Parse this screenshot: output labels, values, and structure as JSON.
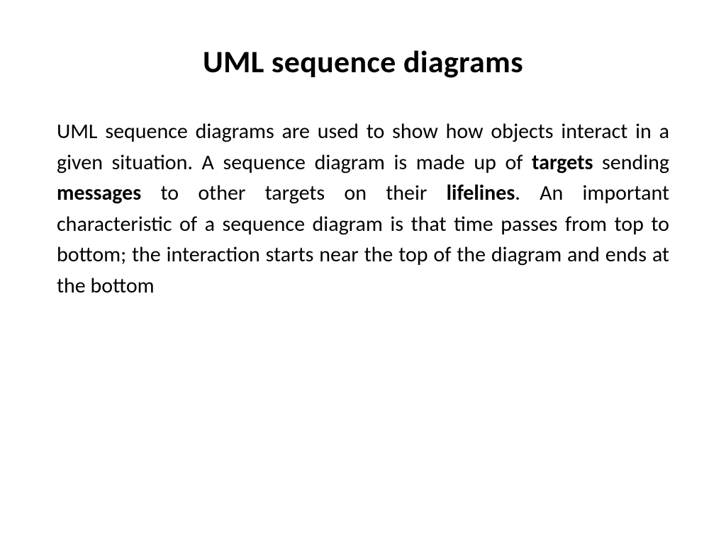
{
  "slide": {
    "title": "UML sequence diagrams",
    "body": {
      "segments": [
        {
          "text": "UML sequence diagrams are used to show how objects interact in a given situation. A sequence diagram is made up of ",
          "bold": false
        },
        {
          "text": "targets",
          "bold": true
        },
        {
          "text": " sending ",
          "bold": false
        },
        {
          "text": "messages",
          "bold": true
        },
        {
          "text": " to other targets on their ",
          "bold": false
        },
        {
          "text": "lifelines",
          "bold": true
        },
        {
          "text": ". An important characteristic of a sequence diagram is that time passes from top to bottom; the interaction starts near the top of the diagram and ends at the bottom",
          "bold": false
        }
      ]
    }
  },
  "style": {
    "background_color": "#ffffff",
    "text_color": "#000000",
    "title_fontsize": 44,
    "title_fontweight": 700,
    "body_fontsize": 30,
    "body_fontweight_normal": 400,
    "body_fontweight_bold": 700,
    "body_line_height": 1.45,
    "body_align": "justify",
    "font_family": "Calibri"
  }
}
